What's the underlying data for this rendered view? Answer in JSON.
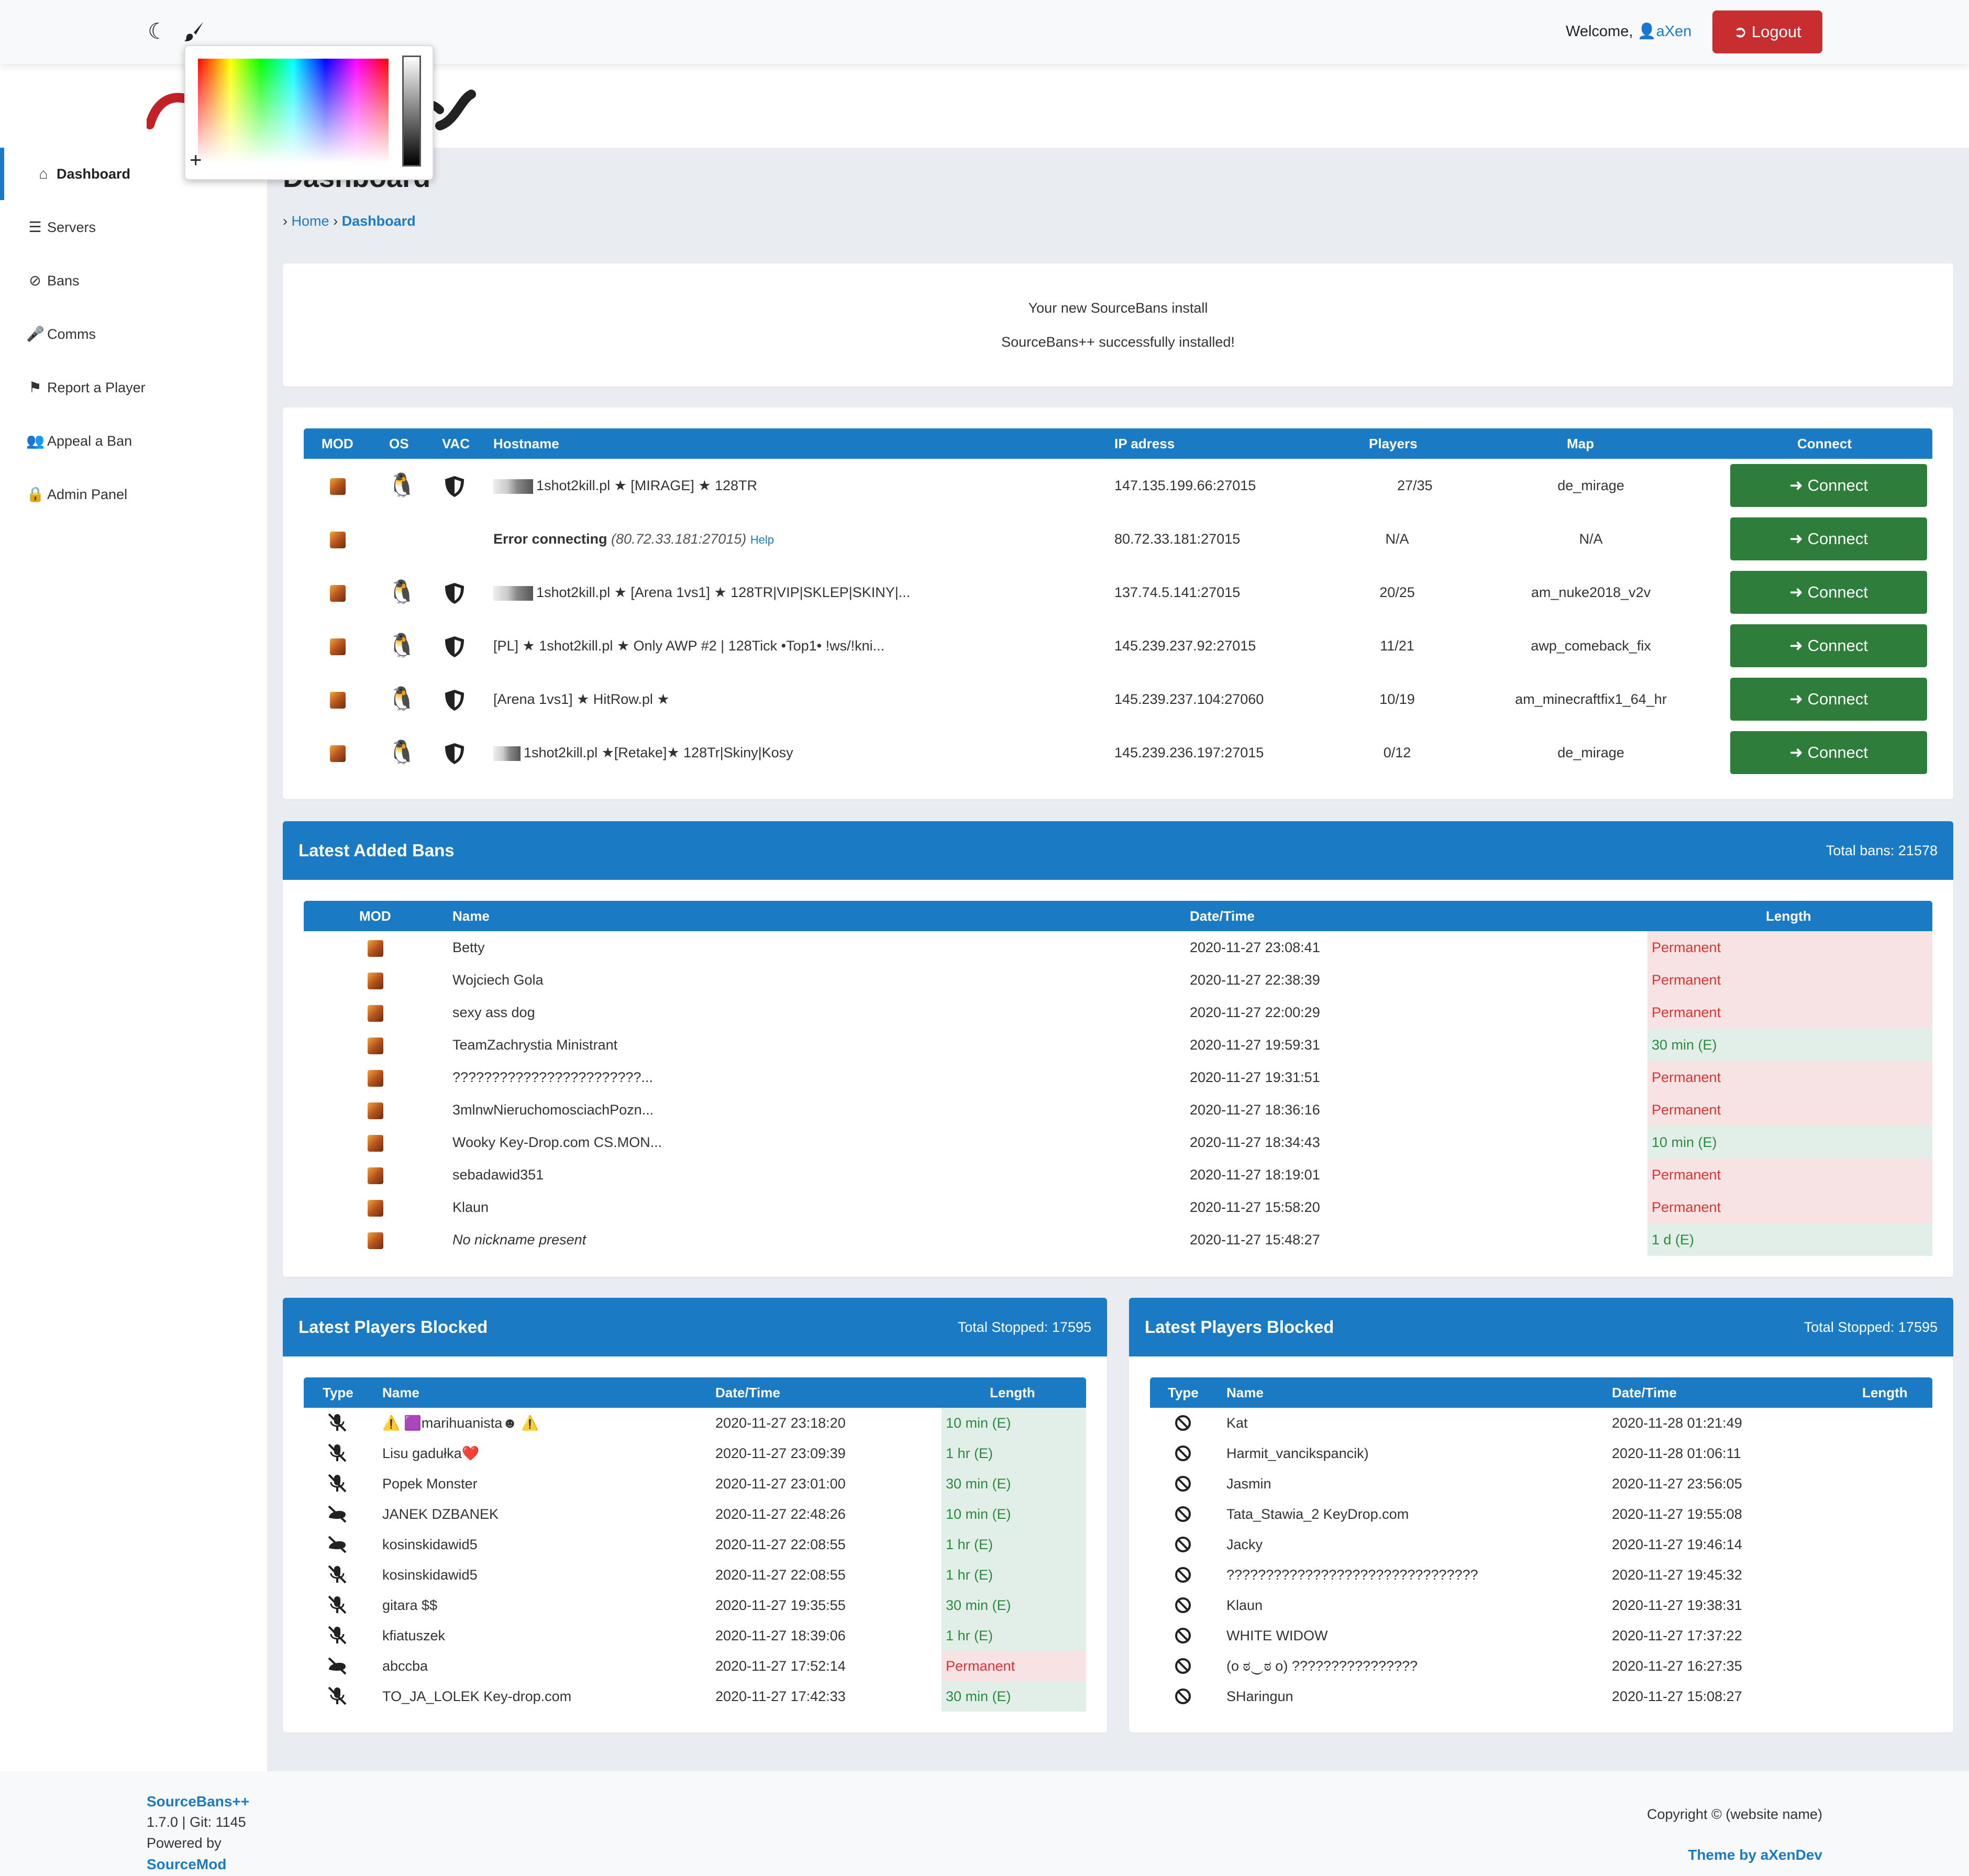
{
  "topbar": {
    "theme_icon": "moon-icon",
    "color_icon": "paintbrush-icon",
    "welcome_label": "Welcome,",
    "username": "aXen",
    "logout_label": "Logout"
  },
  "sidebar": {
    "items": [
      {
        "label": "Dashboard",
        "icon": "home-icon",
        "active": true
      },
      {
        "label": "Servers",
        "icon": "server-icon"
      },
      {
        "label": "Bans",
        "icon": "ban-icon"
      },
      {
        "label": "Comms",
        "icon": "mute-icon"
      },
      {
        "label": "Report a Player",
        "icon": "flag-icon"
      },
      {
        "label": "Appeal a Ban",
        "icon": "user-gear-icon"
      },
      {
        "label": "Admin Panel",
        "icon": "lock-icon"
      }
    ]
  },
  "page": {
    "title": "Dashboard",
    "breadcrumb_home": "Home",
    "breadcrumb_current": "Dashboard"
  },
  "install_notice": {
    "line1": "Your new SourceBans install",
    "line2": "SourceBans++ successfully installed!"
  },
  "servers": {
    "headers": [
      "MOD",
      "OS",
      "VAC",
      "Hostname",
      "IP adress",
      "Players",
      "Map",
      "Connect"
    ],
    "connect_label": "Connect",
    "rows": [
      {
        "hostname": "1shot2kill.pl ★ [MIRAGE] ★ 128TR",
        "ip": "147.135.199.66:27015",
        "players": "27/35",
        "map": "de_mirage"
      },
      {
        "error_label": "Error connecting",
        "error_ip": "(80.72.33.181:27015)",
        "help": "Help",
        "ip": "80.72.33.181:27015",
        "players": "N/A",
        "map": "N/A"
      },
      {
        "hostname": "1shot2kill.pl ★ [Arena 1vs1] ★ 128TR|VIP|SKLEP|SKINY|...",
        "ip": "137.74.5.141:27015",
        "players": "20/25",
        "map": "am_nuke2018_v2v"
      },
      {
        "hostname": "[PL] ★ 1shot2kill.pl ★ Only AWP #2 | 128Tick •Top1• !ws/!kni...",
        "ip": "145.239.237.92:27015",
        "players": "11/21",
        "map": "awp_comeback_fix"
      },
      {
        "hostname": "[Arena 1vs1] ★ HitRow.pl ★",
        "ip": "145.239.237.104:27060",
        "players": "10/19",
        "map": "am_minecraftfix1_64_hr"
      },
      {
        "hostname": "1shot2kill.pl ★[Retake]★ 128Tr|Skiny|Kosy",
        "ip": "145.239.236.197:27015",
        "players": "0/12",
        "map": "de_mirage"
      }
    ]
  },
  "bans": {
    "title": "Latest Added Bans",
    "total": "Total bans: 21578",
    "headers": [
      "MOD",
      "Name",
      "Date/Time",
      "Length"
    ],
    "rows": [
      {
        "name": "Betty",
        "date": "2020-11-27 23:08:41",
        "length": "Permanent",
        "perm": true
      },
      {
        "name": "Wojciech Gola",
        "date": "2020-11-27 22:38:39",
        "length": "Permanent",
        "perm": true
      },
      {
        "name": "sexy ass dog",
        "date": "2020-11-27 22:00:29",
        "length": "Permanent",
        "perm": true
      },
      {
        "name": "TeamZachrystia Ministrant",
        "date": "2020-11-27 19:59:31",
        "length": "30 min (E)",
        "perm": false
      },
      {
        "name": "????????????????????????...",
        "date": "2020-11-27 19:31:51",
        "length": "Permanent",
        "perm": true
      },
      {
        "name": "3mlnwNieruchomosciachPozn...",
        "date": "2020-11-27 18:36:16",
        "length": "Permanent",
        "perm": true
      },
      {
        "name": "Wooky Key-Drop.com CS.MON...",
        "date": "2020-11-27 18:34:43",
        "length": "10 min (E)",
        "perm": false
      },
      {
        "name": "sebadawid351",
        "date": "2020-11-27 18:19:01",
        "length": "Permanent",
        "perm": true
      },
      {
        "name": "Klaun",
        "date": "2020-11-27 15:58:20",
        "length": "Permanent",
        "perm": true
      },
      {
        "name": "No nickname present",
        "date": "2020-11-27 15:48:27",
        "length": "1 d (E)",
        "perm": false,
        "italic": true
      }
    ]
  },
  "blocked_left": {
    "title": "Latest Players Blocked",
    "total": "Total Stopped: 17595",
    "headers": [
      "Type",
      "Name",
      "Date/Time",
      "Length"
    ],
    "rows": [
      {
        "type": "mute-icon",
        "name": "⚠️ 🟪marihuanista☻ ⚠️",
        "date": "2020-11-27 23:18:20",
        "length": "10 min (E)",
        "perm": false
      },
      {
        "type": "mute-icon",
        "name": "Lisu gadułka❤️",
        "date": "2020-11-27 23:09:39",
        "length": "1 hr (E)",
        "perm": false
      },
      {
        "type": "mute-icon",
        "name": "Popek Monster",
        "date": "2020-11-27 23:01:00",
        "length": "30 min (E)",
        "perm": false
      },
      {
        "type": "gag-icon",
        "name": "JANEK DZBANEK",
        "date": "2020-11-27 22:48:26",
        "length": "10 min (E)",
        "perm": false
      },
      {
        "type": "gag-icon",
        "name": "kosinskidawid5",
        "date": "2020-11-27 22:08:55",
        "length": "1 hr (E)",
        "perm": false
      },
      {
        "type": "mute-icon",
        "name": "kosinskidawid5",
        "date": "2020-11-27 22:08:55",
        "length": "1 hr (E)",
        "perm": false
      },
      {
        "type": "mute-icon",
        "name": "gitara $$",
        "date": "2020-11-27 19:35:55",
        "length": "30 min (E)",
        "perm": false
      },
      {
        "type": "mute-icon",
        "name": "kfiatuszek",
        "date": "2020-11-27 18:39:06",
        "length": "1 hr (E)",
        "perm": false
      },
      {
        "type": "gag-icon",
        "name": "abccba",
        "date": "2020-11-27 17:52:14",
        "length": "Permanent",
        "perm": true
      },
      {
        "type": "mute-icon",
        "name": "TO_JA_LOLEK Key-drop.com",
        "date": "2020-11-27 17:42:33",
        "length": "30 min (E)",
        "perm": false
      }
    ]
  },
  "blocked_right": {
    "title": "Latest Players Blocked",
    "total": "Total Stopped: 17595",
    "headers": [
      "Type",
      "Name",
      "Date/Time",
      "Length"
    ],
    "rows": [
      {
        "name": "Kat",
        "date": "2020-11-28 01:21:49"
      },
      {
        "name": "Harmit_vancikspancik)",
        "date": "2020-11-28 01:06:11"
      },
      {
        "name": "Jasmin",
        "date": "2020-11-27 23:56:05"
      },
      {
        "name": "Tata_Stawia_2 KeyDrop.com",
        "date": "2020-11-27 19:55:08"
      },
      {
        "name": "Jacky",
        "date": "2020-11-27 19:46:14"
      },
      {
        "name": "????????????????????????????????",
        "date": "2020-11-27 19:45:32"
      },
      {
        "name": "Klaun",
        "date": "2020-11-27 19:38:31"
      },
      {
        "name": "WHITE WIDOW",
        "date": "2020-11-27 17:37:22"
      },
      {
        "name": "(o ಠ‿ಠ o) ????????????????",
        "date": "2020-11-27 16:27:35"
      },
      {
        "name": "SHaringun",
        "date": "2020-11-27 15:08:27"
      }
    ]
  },
  "footer": {
    "brand": "SourceBans++",
    "version": "1.7.0 | Git: 1145",
    "powered": "Powered by",
    "sourcemod": "SourceMod",
    "copyright": "Copyright © (website name)",
    "theme": "Theme by aXenDev"
  },
  "colors": {
    "primary": "#1a7bc4",
    "connect_green": "#2e7d3a",
    "logout_red": "#c82d2f",
    "permanent_bg": "#f7e3e3",
    "temp_bg": "#e2efe9"
  }
}
